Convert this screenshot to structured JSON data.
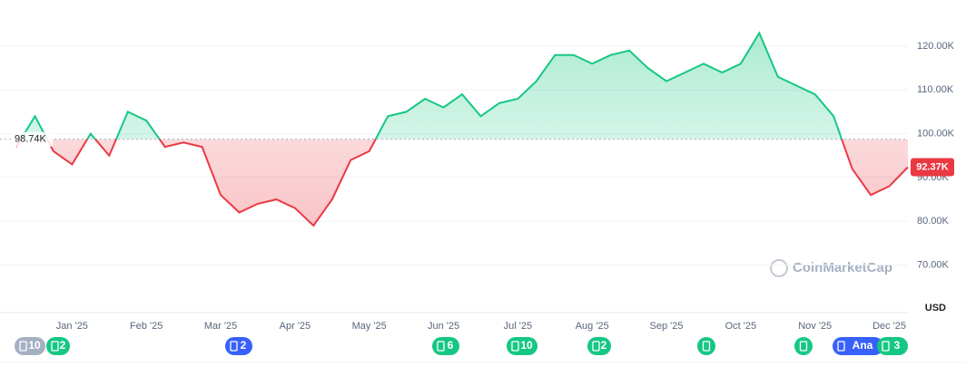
{
  "chart_data": {
    "type": "baseline-line",
    "categories": [
      "Jan '25",
      "Feb '25",
      "Mar '25",
      "Apr '25",
      "May '25",
      "Jun '25",
      "Jul '25",
      "Aug '25",
      "Sep '25",
      "Oct '25",
      "Nov '25",
      "Dec '25"
    ],
    "x": [
      null,
      null,
      null,
      "Jan '25",
      null,
      null,
      null,
      "Feb '25",
      null,
      null,
      null,
      "Mar '25",
      null,
      null,
      null,
      "Apr '25",
      null,
      null,
      null,
      "May '25",
      null,
      null,
      null,
      "Jun '25",
      null,
      null,
      null,
      "Jul '25",
      null,
      null,
      null,
      "Aug '25",
      null,
      null,
      null,
      "Sep '25",
      null,
      null,
      null,
      "Oct '25",
      null,
      null,
      null,
      "Nov '25",
      null,
      null,
      null,
      "Dec '25",
      null
    ],
    "values": [
      97000,
      104000,
      96000,
      93000,
      100000,
      95000,
      105000,
      103000,
      97000,
      98000,
      97000,
      86000,
      82000,
      84000,
      85000,
      83000,
      79000,
      85000,
      94000,
      96000,
      104000,
      105000,
      108000,
      106000,
      109000,
      104000,
      107000,
      108000,
      112000,
      118000,
      118000,
      116000,
      118000,
      119000,
      115000,
      112000,
      114000,
      116000,
      114000,
      116000,
      123000,
      113000,
      111000,
      109000,
      104000,
      92000,
      86000,
      88000,
      92370
    ],
    "up_color": "#16c784",
    "down_color": "#ea3943",
    "baseline": {
      "value": 98740,
      "label": "98.74K"
    },
    "current": {
      "value": 92370,
      "label": "92.37K"
    },
    "ylim": [
      60000,
      130000
    ],
    "yticks": [
      {
        "value": 70000,
        "label": "70.00K"
      },
      {
        "value": 80000,
        "label": "80.00K"
      },
      {
        "value": 90000,
        "label": "90.00K"
      },
      {
        "value": 100000,
        "label": "100.00K"
      },
      {
        "value": 110000,
        "label": "110.00K"
      },
      {
        "value": 120000,
        "label": "120.00K"
      }
    ],
    "y_unit": "USD",
    "grid": true,
    "watermark": "CoinMarketCap"
  },
  "events": [
    {
      "label": "10"
    },
    {
      "label": "2"
    },
    {
      "label": "2"
    },
    {
      "label": "6"
    },
    {
      "label": "10"
    },
    {
      "label": "2"
    },
    {
      "label": "Ana"
    },
    {
      "label": "3"
    }
  ]
}
